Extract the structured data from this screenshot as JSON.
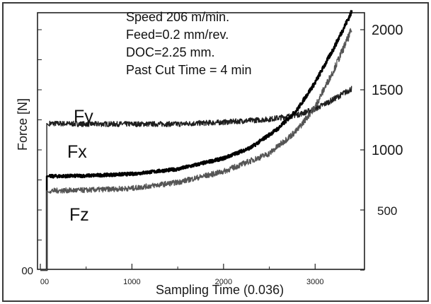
{
  "chart_data": {
    "type": "line",
    "xlabel": "Sampling Time (0.036)",
    "ylabel": "Force [N]",
    "xlim": [
      0,
      3500
    ],
    "ylim": [
      0,
      2250
    ],
    "x_ticks": [
      0,
      1000,
      2000,
      3000
    ],
    "x_tick_labels": [
      "00",
      "1000",
      "2000",
      "3000"
    ],
    "y_ticks": [
      0,
      500,
      1000,
      1500,
      2000
    ],
    "y_tick_labels": [
      "00",
      "500",
      "1000",
      "1500",
      "2000"
    ],
    "grid": false,
    "legend": "none",
    "annotations": [
      "Speed 206 m/min.",
      "Feed=0.2 mm/rev.",
      "DOC=2.25 mm.",
      "Past Cut Time = 4 min"
    ],
    "series": [
      {
        "name": "Fy",
        "x": [
          0,
          70,
          100,
          500,
          1000,
          1500,
          2000,
          2500,
          2800,
          3000,
          3200,
          3400
        ],
        "y": [
          0,
          0,
          1220,
          1215,
          1215,
          1215,
          1230,
          1255,
          1290,
          1340,
          1420,
          1510
        ],
        "color": "#1e1e1e",
        "noise": 22
      },
      {
        "name": "Fx",
        "x": [
          0,
          70,
          100,
          500,
          1000,
          1500,
          2000,
          2300,
          2600,
          2800,
          3000,
          3200,
          3400
        ],
        "y": [
          0,
          0,
          780,
          785,
          800,
          840,
          930,
          1020,
          1180,
          1330,
          1560,
          1840,
          2150
        ],
        "color": "#000000",
        "noise": 13
      },
      {
        "name": "Fz",
        "x": [
          0,
          70,
          100,
          500,
          1000,
          1500,
          2000,
          2500,
          2800,
          3000,
          3200,
          3400
        ],
        "y": [
          0,
          0,
          660,
          665,
          680,
          730,
          820,
          970,
          1160,
          1360,
          1660,
          2000
        ],
        "color": "#555555",
        "noise": 22
      }
    ]
  }
}
